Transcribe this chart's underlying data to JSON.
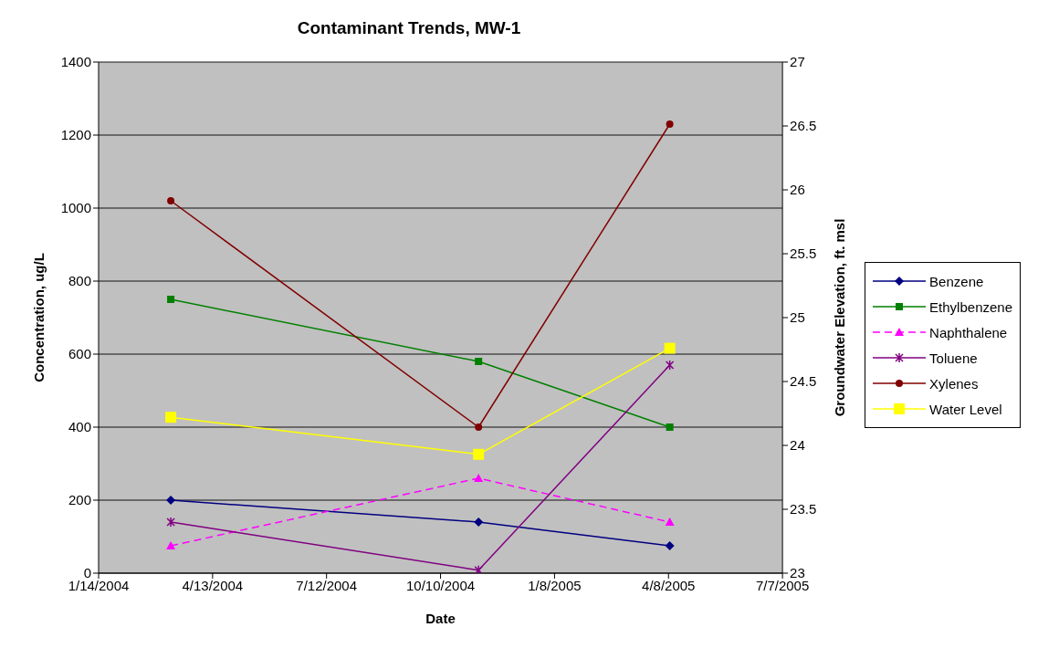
{
  "chart_data": {
    "type": "line",
    "title": "Contaminant Trends, MW-1",
    "xlabel": "Date",
    "ylabel": "Concentration, ug/L",
    "y2label": "Groundwater Elevation, ft. msl",
    "x": [
      "2004-03-11",
      "2004-11-09",
      "2005-04-09"
    ],
    "series": [
      {
        "name": "Benzene",
        "color": "#000080",
        "marker": "diamond",
        "values": [
          200,
          140,
          75
        ]
      },
      {
        "name": "Ethylbenzene",
        "color": "#008000",
        "marker": "square",
        "values": [
          750,
          580,
          400
        ]
      },
      {
        "name": "Naphthalene",
        "color": "#ff00ff",
        "marker": "triangle",
        "line_style": "dashed",
        "values": [
          75,
          260,
          140
        ]
      },
      {
        "name": "Toluene",
        "color": "#800080",
        "marker": "cross",
        "values": [
          140,
          8,
          570
        ]
      },
      {
        "name": "Xylenes",
        "color": "#800000",
        "marker": "circle",
        "values": [
          1020,
          400,
          1230
        ]
      },
      {
        "name": "Water Level",
        "color": "#ffff00",
        "marker": "square",
        "axis": "y2",
        "values": [
          24.22,
          23.93,
          24.76
        ]
      }
    ],
    "xlim": [
      "2004-01-14",
      "2005-07-07"
    ],
    "xticks": [
      {
        "value": "2004-01-14",
        "label": "1/14/2004"
      },
      {
        "value": "2004-04-13",
        "label": "4/13/2004"
      },
      {
        "value": "2004-07-12",
        "label": "7/12/2004"
      },
      {
        "value": "2004-10-10",
        "label": "10/10/2004"
      },
      {
        "value": "2005-01-08",
        "label": "1/8/2005"
      },
      {
        "value": "2005-04-08",
        "label": "4/8/2005"
      },
      {
        "value": "2005-07-07",
        "label": "7/7/2005"
      }
    ],
    "ylim": [
      0,
      1400
    ],
    "yticks": [
      0,
      200,
      400,
      600,
      800,
      1000,
      1200,
      1400
    ],
    "y2lim": [
      23,
      27
    ],
    "y2ticks": [
      23,
      23.5,
      24,
      24.5,
      25,
      25.5,
      26,
      26.5,
      27
    ],
    "grid": "y",
    "legend": "right",
    "line_style": "solid"
  }
}
